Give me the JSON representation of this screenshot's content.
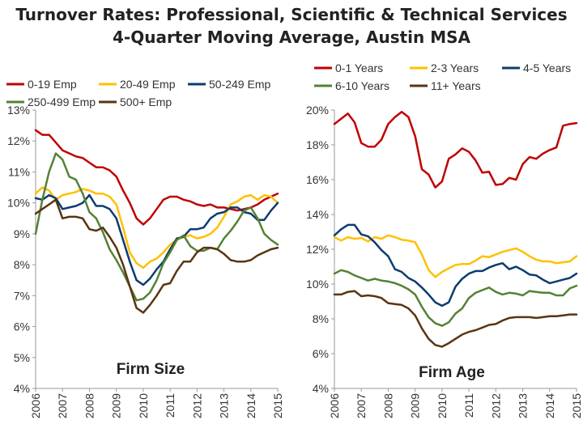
{
  "title_line1": "Turnover Rates: Professional, Scientific & Technical Services",
  "title_line2": "4-Quarter Moving Average, Austin MSA",
  "chart_data": [
    {
      "type": "line",
      "label": "Firm Size",
      "yunit": "%",
      "ylim": [
        4,
        13
      ],
      "yticks": [
        4,
        5,
        6,
        7,
        8,
        9,
        10,
        11,
        12,
        13
      ],
      "xlim": [
        2006,
        2015
      ],
      "xticks": [
        "2006",
        "2007",
        "2008",
        "2009",
        "2010",
        "2011",
        "2012",
        "2013",
        "2014",
        "2015"
      ],
      "legend": "top",
      "grid": false,
      "series": [
        {
          "name": "0-19 Emp",
          "color": "#c00000",
          "x": [
            2006.0,
            2006.25,
            2006.5,
            2006.75,
            2007.0,
            2007.25,
            2007.5,
            2007.75,
            2008.0,
            2008.25,
            2008.5,
            2008.75,
            2009.0,
            2009.25,
            2009.5,
            2009.75,
            2010.0,
            2010.25,
            2010.5,
            2010.75,
            2011.0,
            2011.25,
            2011.5,
            2011.75,
            2012.0,
            2012.25,
            2012.5,
            2012.75,
            2013.0,
            2013.25,
            2013.5,
            2013.75,
            2014.0,
            2014.25,
            2014.5,
            2014.75,
            2015.0
          ],
          "values": [
            12.35,
            12.2,
            12.2,
            11.95,
            11.7,
            11.6,
            11.5,
            11.45,
            11.3,
            11.15,
            11.15,
            11.05,
            10.85,
            10.4,
            10.0,
            9.5,
            9.3,
            9.5,
            9.8,
            10.1,
            10.2,
            10.2,
            10.1,
            10.05,
            9.95,
            9.9,
            9.95,
            9.85,
            9.85,
            9.8,
            9.75,
            9.8,
            9.85,
            9.95,
            10.1,
            10.2,
            10.3
          ]
        },
        {
          "name": "20-49 Emp",
          "color": "#ffc000",
          "x": [
            2006.0,
            2006.25,
            2006.5,
            2006.75,
            2007.0,
            2007.25,
            2007.5,
            2007.75,
            2008.0,
            2008.25,
            2008.5,
            2008.75,
            2009.0,
            2009.25,
            2009.5,
            2009.75,
            2010.0,
            2010.25,
            2010.5,
            2010.75,
            2011.0,
            2011.25,
            2011.5,
            2011.75,
            2012.0,
            2012.25,
            2012.5,
            2012.75,
            2013.0,
            2013.25,
            2013.5,
            2013.75,
            2014.0,
            2014.25,
            2014.5,
            2014.75,
            2015.0
          ],
          "values": [
            10.3,
            10.5,
            10.4,
            10.1,
            10.25,
            10.3,
            10.35,
            10.45,
            10.4,
            10.3,
            10.3,
            10.2,
            9.95,
            9.2,
            8.4,
            8.05,
            7.9,
            8.1,
            8.2,
            8.4,
            8.65,
            8.8,
            8.9,
            8.95,
            8.85,
            8.9,
            9.0,
            9.2,
            9.55,
            9.95,
            10.05,
            10.2,
            10.25,
            10.1,
            10.25,
            10.2,
            10.0
          ]
        },
        {
          "name": "50-249 Emp",
          "color": "#0d3c6e",
          "x": [
            2006.0,
            2006.25,
            2006.5,
            2006.75,
            2007.0,
            2007.25,
            2007.5,
            2007.75,
            2008.0,
            2008.25,
            2008.5,
            2008.75,
            2009.0,
            2009.25,
            2009.5,
            2009.75,
            2010.0,
            2010.25,
            2010.5,
            2010.75,
            2011.0,
            2011.25,
            2011.5,
            2011.75,
            2012.0,
            2012.25,
            2012.5,
            2012.75,
            2013.0,
            2013.25,
            2013.5,
            2013.75,
            2014.0,
            2014.25,
            2014.5,
            2014.75,
            2015.0
          ],
          "values": [
            10.15,
            10.1,
            10.25,
            10.15,
            9.8,
            9.85,
            9.9,
            10.0,
            10.25,
            9.9,
            9.9,
            9.8,
            9.5,
            8.8,
            8.1,
            7.5,
            7.35,
            7.55,
            7.85,
            8.1,
            8.5,
            8.85,
            8.9,
            9.15,
            9.15,
            9.2,
            9.5,
            9.65,
            9.7,
            9.85,
            9.85,
            9.7,
            9.65,
            9.45,
            9.45,
            9.75,
            10.0
          ]
        },
        {
          "name": "250-499 Emp",
          "color": "#548235",
          "x": [
            2006.0,
            2006.25,
            2006.5,
            2006.75,
            2007.0,
            2007.25,
            2007.5,
            2007.75,
            2008.0,
            2008.25,
            2008.5,
            2008.75,
            2009.0,
            2009.25,
            2009.5,
            2009.75,
            2010.0,
            2010.25,
            2010.5,
            2010.75,
            2011.0,
            2011.25,
            2011.5,
            2011.75,
            2012.0,
            2012.25,
            2012.5,
            2012.75,
            2013.0,
            2013.25,
            2013.5,
            2013.75,
            2014.0,
            2014.25,
            2014.5,
            2014.75,
            2015.0
          ],
          "values": [
            9.0,
            10.1,
            11.0,
            11.6,
            11.4,
            10.85,
            10.75,
            10.3,
            9.7,
            9.5,
            9.05,
            8.5,
            8.15,
            7.75,
            7.3,
            6.85,
            6.9,
            7.1,
            7.5,
            8.05,
            8.4,
            8.8,
            8.95,
            8.6,
            8.45,
            8.45,
            8.55,
            8.5,
            8.85,
            9.1,
            9.4,
            9.75,
            9.85,
            9.5,
            9.0,
            8.8,
            8.65
          ]
        },
        {
          "name": "500+ Emp",
          "color": "#5a3512",
          "x": [
            2006.0,
            2006.25,
            2006.5,
            2006.75,
            2007.0,
            2007.25,
            2007.5,
            2007.75,
            2008.0,
            2008.25,
            2008.5,
            2008.75,
            2009.0,
            2009.25,
            2009.5,
            2009.75,
            2010.0,
            2010.25,
            2010.5,
            2010.75,
            2011.0,
            2011.25,
            2011.5,
            2011.75,
            2012.0,
            2012.25,
            2012.5,
            2012.75,
            2013.0,
            2013.25,
            2013.5,
            2013.75,
            2014.0,
            2014.25,
            2014.5,
            2014.75,
            2015.0
          ],
          "values": [
            9.65,
            9.8,
            9.95,
            10.1,
            9.5,
            9.55,
            9.55,
            9.5,
            9.15,
            9.1,
            9.2,
            8.9,
            8.55,
            8.0,
            7.3,
            6.6,
            6.45,
            6.7,
            7.0,
            7.35,
            7.4,
            7.8,
            8.1,
            8.1,
            8.4,
            8.55,
            8.55,
            8.5,
            8.35,
            8.15,
            8.1,
            8.1,
            8.15,
            8.3,
            8.4,
            8.5,
            8.55
          ]
        }
      ]
    },
    {
      "type": "line",
      "label": "Firm Age",
      "yunit": "%",
      "ylim": [
        4,
        20
      ],
      "yticks": [
        4,
        6,
        8,
        10,
        12,
        14,
        16,
        18,
        20
      ],
      "xlim": [
        2006,
        2015
      ],
      "xticks": [
        "2006",
        "2007",
        "2008",
        "2009",
        "2010",
        "2011",
        "2012",
        "2013",
        "2014",
        "2015"
      ],
      "legend": "top",
      "grid": false,
      "series": [
        {
          "name": "0-1 Years",
          "color": "#c00000",
          "x": [
            2006.0,
            2006.25,
            2006.5,
            2006.75,
            2007.0,
            2007.25,
            2007.5,
            2007.75,
            2008.0,
            2008.25,
            2008.5,
            2008.75,
            2009.0,
            2009.25,
            2009.5,
            2009.75,
            2010.0,
            2010.25,
            2010.5,
            2010.75,
            2011.0,
            2011.25,
            2011.5,
            2011.75,
            2012.0,
            2012.25,
            2012.5,
            2012.75,
            2013.0,
            2013.25,
            2013.5,
            2013.75,
            2014.0,
            2014.25,
            2014.5,
            2014.75,
            2015.0
          ],
          "values": [
            19.2,
            19.5,
            19.8,
            19.3,
            18.1,
            17.9,
            17.9,
            18.3,
            19.2,
            19.6,
            19.9,
            19.6,
            18.5,
            16.6,
            16.3,
            15.55,
            15.9,
            17.2,
            17.45,
            17.8,
            17.6,
            17.1,
            16.4,
            16.45,
            15.7,
            15.75,
            16.1,
            16.0,
            16.9,
            17.3,
            17.2,
            17.5,
            17.7,
            17.85,
            19.1,
            19.2,
            19.25
          ]
        },
        {
          "name": "2-3 Years",
          "color": "#ffc000",
          "x": [
            2006.0,
            2006.25,
            2006.5,
            2006.75,
            2007.0,
            2007.25,
            2007.5,
            2007.75,
            2008.0,
            2008.25,
            2008.5,
            2008.75,
            2009.0,
            2009.25,
            2009.5,
            2009.75,
            2010.0,
            2010.25,
            2010.5,
            2010.75,
            2011.0,
            2011.25,
            2011.5,
            2011.75,
            2012.0,
            2012.25,
            2012.5,
            2012.75,
            2013.0,
            2013.25,
            2013.5,
            2013.75,
            2014.0,
            2014.25,
            2014.5,
            2014.75,
            2015.0
          ],
          "values": [
            12.7,
            12.5,
            12.7,
            12.6,
            12.65,
            12.45,
            12.7,
            12.6,
            12.8,
            12.7,
            12.55,
            12.5,
            12.4,
            11.7,
            10.8,
            10.4,
            10.7,
            10.9,
            11.1,
            11.15,
            11.15,
            11.35,
            11.6,
            11.55,
            11.7,
            11.85,
            11.95,
            12.05,
            11.85,
            11.6,
            11.4,
            11.3,
            11.3,
            11.2,
            11.25,
            11.3,
            11.6
          ]
        },
        {
          "name": "4-5 Years",
          "color": "#0d3c6e",
          "x": [
            2006.0,
            2006.25,
            2006.5,
            2006.75,
            2007.0,
            2007.25,
            2007.5,
            2007.75,
            2008.0,
            2008.25,
            2008.5,
            2008.75,
            2009.0,
            2009.25,
            2009.5,
            2009.75,
            2010.0,
            2010.25,
            2010.5,
            2010.75,
            2011.0,
            2011.25,
            2011.5,
            2011.75,
            2012.0,
            2012.25,
            2012.5,
            2012.75,
            2013.0,
            2013.25,
            2013.5,
            2013.75,
            2014.0,
            2014.25,
            2014.5,
            2014.75,
            2015.0
          ],
          "values": [
            12.8,
            13.15,
            13.4,
            13.4,
            12.85,
            12.75,
            12.4,
            11.95,
            11.6,
            10.85,
            10.7,
            10.35,
            10.15,
            9.8,
            9.4,
            8.95,
            8.75,
            8.95,
            9.85,
            10.3,
            10.6,
            10.75,
            10.75,
            10.95,
            11.1,
            11.2,
            10.85,
            11.0,
            10.8,
            10.55,
            10.5,
            10.25,
            10.05,
            10.15,
            10.25,
            10.35,
            10.6
          ]
        },
        {
          "name": "6-10 Years",
          "color": "#548235",
          "x": [
            2006.0,
            2006.25,
            2006.5,
            2006.75,
            2007.0,
            2007.25,
            2007.5,
            2007.75,
            2008.0,
            2008.25,
            2008.5,
            2008.75,
            2009.0,
            2009.25,
            2009.5,
            2009.75,
            2010.0,
            2010.25,
            2010.5,
            2010.75,
            2011.0,
            2011.25,
            2011.5,
            2011.75,
            2012.0,
            2012.25,
            2012.5,
            2012.75,
            2013.0,
            2013.25,
            2013.5,
            2013.75,
            2014.0,
            2014.25,
            2014.5,
            2014.75,
            2015.0
          ],
          "values": [
            10.6,
            10.8,
            10.7,
            10.5,
            10.35,
            10.2,
            10.3,
            10.2,
            10.15,
            10.05,
            9.9,
            9.7,
            9.4,
            8.7,
            8.1,
            7.75,
            7.6,
            7.8,
            8.3,
            8.6,
            9.2,
            9.5,
            9.65,
            9.8,
            9.55,
            9.4,
            9.5,
            9.45,
            9.35,
            9.6,
            9.55,
            9.5,
            9.5,
            9.35,
            9.35,
            9.75,
            9.9
          ]
        },
        {
          "name": "11+ Years",
          "color": "#5a3512",
          "x": [
            2006.0,
            2006.25,
            2006.5,
            2006.75,
            2007.0,
            2007.25,
            2007.5,
            2007.75,
            2008.0,
            2008.25,
            2008.5,
            2008.75,
            2009.0,
            2009.25,
            2009.5,
            2009.75,
            2010.0,
            2010.25,
            2010.5,
            2010.75,
            2011.0,
            2011.25,
            2011.5,
            2011.75,
            2012.0,
            2012.25,
            2012.5,
            2012.75,
            2013.0,
            2013.25,
            2013.5,
            2013.75,
            2014.0,
            2014.25,
            2014.5,
            2014.75,
            2015.0
          ],
          "values": [
            9.4,
            9.4,
            9.55,
            9.6,
            9.3,
            9.35,
            9.3,
            9.2,
            8.9,
            8.85,
            8.8,
            8.6,
            8.2,
            7.45,
            6.85,
            6.5,
            6.4,
            6.6,
            6.85,
            7.1,
            7.25,
            7.35,
            7.5,
            7.65,
            7.7,
            7.9,
            8.05,
            8.1,
            8.1,
            8.1,
            8.05,
            8.1,
            8.15,
            8.15,
            8.2,
            8.25,
            8.25
          ]
        }
      ]
    }
  ]
}
